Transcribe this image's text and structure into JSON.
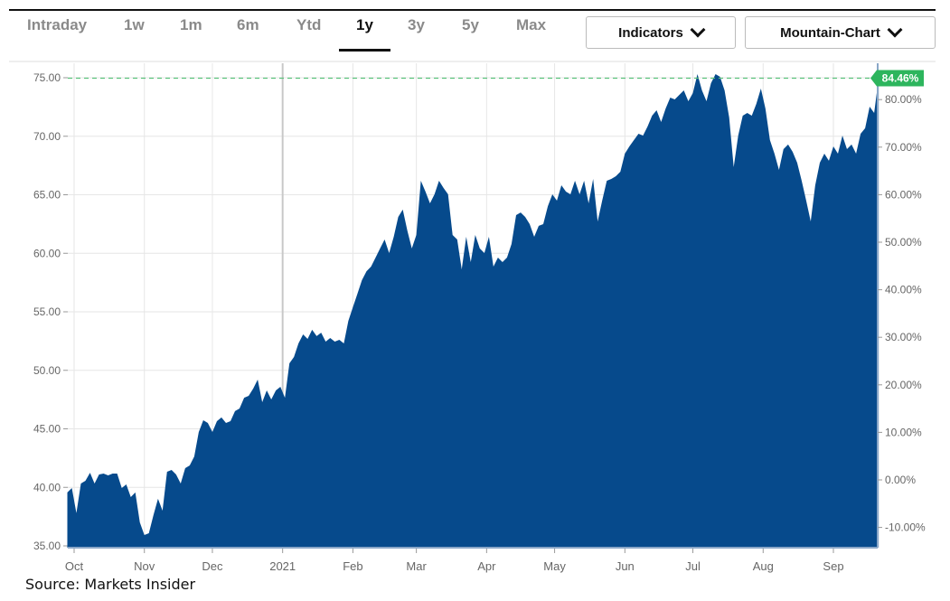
{
  "toolbar": {
    "tabs": [
      {
        "label": "Intraday"
      },
      {
        "label": "1w"
      },
      {
        "label": "1m"
      },
      {
        "label": "6m"
      },
      {
        "label": "Ytd"
      },
      {
        "label": "1y",
        "active": true
      },
      {
        "label": "3y"
      },
      {
        "label": "5y"
      },
      {
        "label": "Max"
      }
    ],
    "indicators_label": "Indicators",
    "chart_type_label": "Mountain-Chart"
  },
  "source": "Source: Markets Insider",
  "colors": {
    "fill": "#064a8c",
    "badge": "#2db55d",
    "dashed_line": "#5cc27c",
    "grid": "#e6e6e6"
  },
  "chart_data": {
    "type": "area",
    "title": "",
    "xlabel": "",
    "ylabel": "",
    "ylim": [
      35,
      75.8
    ],
    "y_ticks": [
      "35.00",
      "40.00",
      "45.00",
      "50.00",
      "55.00",
      "60.00",
      "65.00",
      "70.00",
      "75.00"
    ],
    "y2_ticks": [
      "-10.00%",
      "0.00%",
      "10.00%",
      "20.00%",
      "30.00%",
      "40.00%",
      "50.00%",
      "60.00%",
      "70.00%",
      "80.00%"
    ],
    "y2_base_price": 40.64,
    "x_ticks": [
      {
        "date": "2020-10-01",
        "label": "Oct"
      },
      {
        "date": "2020-11-01",
        "label": "Nov"
      },
      {
        "date": "2020-12-01",
        "label": "Dec"
      },
      {
        "date": "2021-01-01",
        "label": "2021"
      },
      {
        "date": "2021-02-01",
        "label": "Feb"
      },
      {
        "date": "2021-03-01",
        "label": "Mar"
      },
      {
        "date": "2021-04-01",
        "label": "Apr"
      },
      {
        "date": "2021-05-01",
        "label": "May"
      },
      {
        "date": "2021-06-01",
        "label": "Jun"
      },
      {
        "date": "2021-07-01",
        "label": "Jul"
      },
      {
        "date": "2021-08-01",
        "label": "Aug"
      },
      {
        "date": "2021-09-01",
        "label": "Sep"
      }
    ],
    "grid": true,
    "current_change_label": "84.46%",
    "current_price": 74.96,
    "dates": [
      "2020-09-28",
      "2020-09-30",
      "2020-10-02",
      "2020-10-04",
      "2020-10-06",
      "2020-10-08",
      "2020-10-10",
      "2020-10-12",
      "2020-10-14",
      "2020-10-16",
      "2020-10-18",
      "2020-10-20",
      "2020-10-22",
      "2020-10-24",
      "2020-10-26",
      "2020-10-28",
      "2020-10-30",
      "2020-11-01",
      "2020-11-03",
      "2020-11-05",
      "2020-11-07",
      "2020-11-09",
      "2020-11-11",
      "2020-11-13",
      "2020-11-15",
      "2020-11-17",
      "2020-11-19",
      "2020-11-21",
      "2020-11-23",
      "2020-11-25",
      "2020-11-27",
      "2020-11-29",
      "2020-12-01",
      "2020-12-03",
      "2020-12-05",
      "2020-12-07",
      "2020-12-09",
      "2020-12-11",
      "2020-12-13",
      "2020-12-15",
      "2020-12-17",
      "2020-12-19",
      "2020-12-21",
      "2020-12-23",
      "2020-12-25",
      "2020-12-27",
      "2020-12-29",
      "2020-12-31",
      "2021-01-02",
      "2021-01-04",
      "2021-01-06",
      "2021-01-08",
      "2021-01-10",
      "2021-01-12",
      "2021-01-14",
      "2021-01-16",
      "2021-01-18",
      "2021-01-20",
      "2021-01-22",
      "2021-01-24",
      "2021-01-26",
      "2021-01-28",
      "2021-01-30",
      "2021-02-01",
      "2021-02-03",
      "2021-02-05",
      "2021-02-07",
      "2021-02-09",
      "2021-02-11",
      "2021-02-13",
      "2021-02-15",
      "2021-02-17",
      "2021-02-19",
      "2021-02-21",
      "2021-02-23",
      "2021-02-25",
      "2021-02-27",
      "2021-03-01",
      "2021-03-03",
      "2021-03-05",
      "2021-03-07",
      "2021-03-09",
      "2021-03-11",
      "2021-03-13",
      "2021-03-15",
      "2021-03-17",
      "2021-03-19",
      "2021-03-21",
      "2021-03-23",
      "2021-03-25",
      "2021-03-27",
      "2021-03-29",
      "2021-03-31",
      "2021-04-02",
      "2021-04-04",
      "2021-04-06",
      "2021-04-08",
      "2021-04-10",
      "2021-04-12",
      "2021-04-14",
      "2021-04-16",
      "2021-04-18",
      "2021-04-20",
      "2021-04-22",
      "2021-04-24",
      "2021-04-26",
      "2021-04-28",
      "2021-04-30",
      "2021-05-02",
      "2021-05-04",
      "2021-05-06",
      "2021-05-08",
      "2021-05-10",
      "2021-05-12",
      "2021-05-14",
      "2021-05-16",
      "2021-05-18",
      "2021-05-20",
      "2021-05-22",
      "2021-05-24",
      "2021-05-26",
      "2021-05-28",
      "2021-05-30",
      "2021-06-01",
      "2021-06-03",
      "2021-06-05",
      "2021-06-07",
      "2021-06-09",
      "2021-06-11",
      "2021-06-13",
      "2021-06-15",
      "2021-06-17",
      "2021-06-19",
      "2021-06-21",
      "2021-06-23",
      "2021-06-25",
      "2021-06-27",
      "2021-06-29",
      "2021-07-01",
      "2021-07-03",
      "2021-07-05",
      "2021-07-07",
      "2021-07-09",
      "2021-07-11",
      "2021-07-13",
      "2021-07-15",
      "2021-07-17",
      "2021-07-19",
      "2021-07-21",
      "2021-07-23",
      "2021-07-25",
      "2021-07-27",
      "2021-07-29",
      "2021-07-31",
      "2021-08-02",
      "2021-08-04",
      "2021-08-06",
      "2021-08-08",
      "2021-08-10",
      "2021-08-12",
      "2021-08-14",
      "2021-08-16",
      "2021-08-18",
      "2021-08-20",
      "2021-08-22",
      "2021-08-24",
      "2021-08-26",
      "2021-08-28",
      "2021-08-30",
      "2021-09-01",
      "2021-09-03",
      "2021-09-05",
      "2021-09-07",
      "2021-09-09",
      "2021-09-11",
      "2021-09-13",
      "2021-09-15",
      "2021-09-17",
      "2021-09-19",
      "2021-09-21"
    ],
    "values": [
      39.56,
      39.94,
      37.8,
      40.33,
      40.56,
      41.25,
      40.33,
      41.1,
      41.18,
      41.02,
      41.18,
      41.18,
      39.94,
      40.25,
      39.17,
      39.56,
      37.01,
      35.93,
      36.08,
      37.63,
      39.02,
      38.01,
      41.33,
      41.49,
      41.1,
      40.33,
      41.64,
      41.87,
      42.64,
      44.73,
      45.73,
      45.5,
      44.73,
      45.66,
      45.97,
      45.5,
      45.66,
      46.51,
      46.74,
      47.66,
      47.82,
      48.44,
      49.21,
      47.28,
      48.28,
      47.51,
      48.28,
      48.59,
      47.66,
      50.6,
      51.14,
      52.3,
      53.07,
      52.68,
      53.46,
      52.92,
      53.22,
      52.45,
      52.76,
      52.45,
      52.61,
      52.3,
      54.23,
      55.39,
      56.54,
      57.7,
      58.47,
      58.86,
      59.63,
      60.41,
      61.18,
      60.02,
      61.41,
      63.11,
      63.73,
      61.95,
      60.41,
      61.56,
      66.2,
      65.27,
      64.27,
      65.04,
      66.2,
      65.58,
      65.04,
      61.56,
      61.18,
      58.63,
      61.41,
      59.25,
      61.56,
      60.41,
      60.02,
      61.41,
      58.86,
      59.63,
      59.25,
      59.63,
      60.79,
      63.26,
      63.49,
      63.11,
      62.49,
      61.41,
      62.34,
      62.49,
      64.03,
      65.04,
      64.5,
      65.81,
      65.27,
      65.04,
      66.2,
      65.04,
      66.2,
      64.27,
      66.35,
      62.72,
      64.5,
      66.2,
      66.35,
      66.58,
      66.97,
      68.51,
      69.13,
      69.67,
      70.21,
      70.06,
      70.83,
      71.76,
      72.22,
      71.22,
      72.37,
      73.3,
      73.15,
      73.53,
      73.92,
      72.99,
      73.69,
      75.31,
      73.92,
      72.99,
      74.54,
      75.31,
      75.08,
      73.92,
      71.6,
      67.36,
      70.06,
      71.76,
      71.99,
      71.76,
      72.76,
      74.07,
      72.37,
      69.67,
      68.51,
      67.12,
      68.9,
      69.29,
      68.67,
      67.74,
      66.2,
      64.5,
      62.72,
      65.81,
      67.74,
      68.51,
      67.9,
      69.13,
      68.51,
      70.06,
      68.9,
      69.29,
      68.51,
      70.21,
      70.68,
      72.53,
      71.99,
      74.96
    ]
  }
}
